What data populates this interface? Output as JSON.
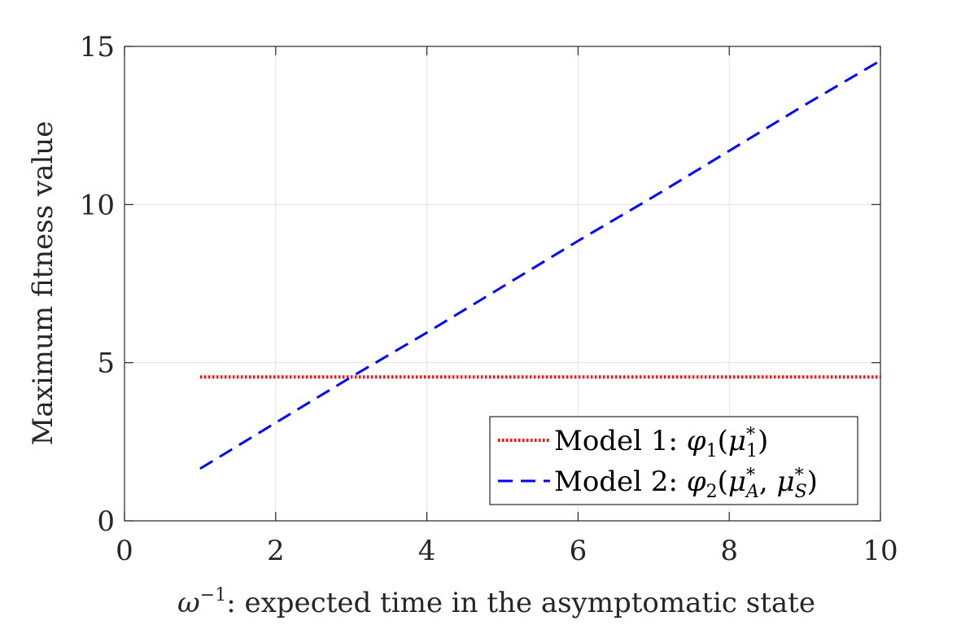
{
  "chart_data": {
    "type": "line",
    "title": "",
    "xlabel": "ω⁻¹: expected time in the asymptomatic state",
    "ylabel": "Maximum fitness value",
    "xlim": [
      0,
      10
    ],
    "ylim": [
      0,
      15
    ],
    "x_ticks": [
      "0",
      "2",
      "4",
      "6",
      "8",
      "10"
    ],
    "y_ticks": [
      "0",
      "5",
      "10",
      "15"
    ],
    "grid": true,
    "legend_position": "bottom-right",
    "series": [
      {
        "name": "Model 1: φ1(μ1*)",
        "style": "dotted",
        "color": "#ff0000",
        "x": [
          1,
          2,
          3,
          4,
          5,
          6,
          7,
          8,
          9,
          10
        ],
        "y": [
          4.55,
          4.55,
          4.55,
          4.55,
          4.55,
          4.55,
          4.55,
          4.55,
          4.55,
          4.55
        ]
      },
      {
        "name": "Model 2: φ2(μA*, μS*)",
        "style": "dashed",
        "color": "#0000ff",
        "x": [
          1,
          2,
          3,
          4,
          5,
          6,
          7,
          8,
          9,
          10
        ],
        "y": [
          1.65,
          3.1,
          4.55,
          5.95,
          7.4,
          8.85,
          10.25,
          11.7,
          13.15,
          14.55
        ]
      }
    ]
  }
}
